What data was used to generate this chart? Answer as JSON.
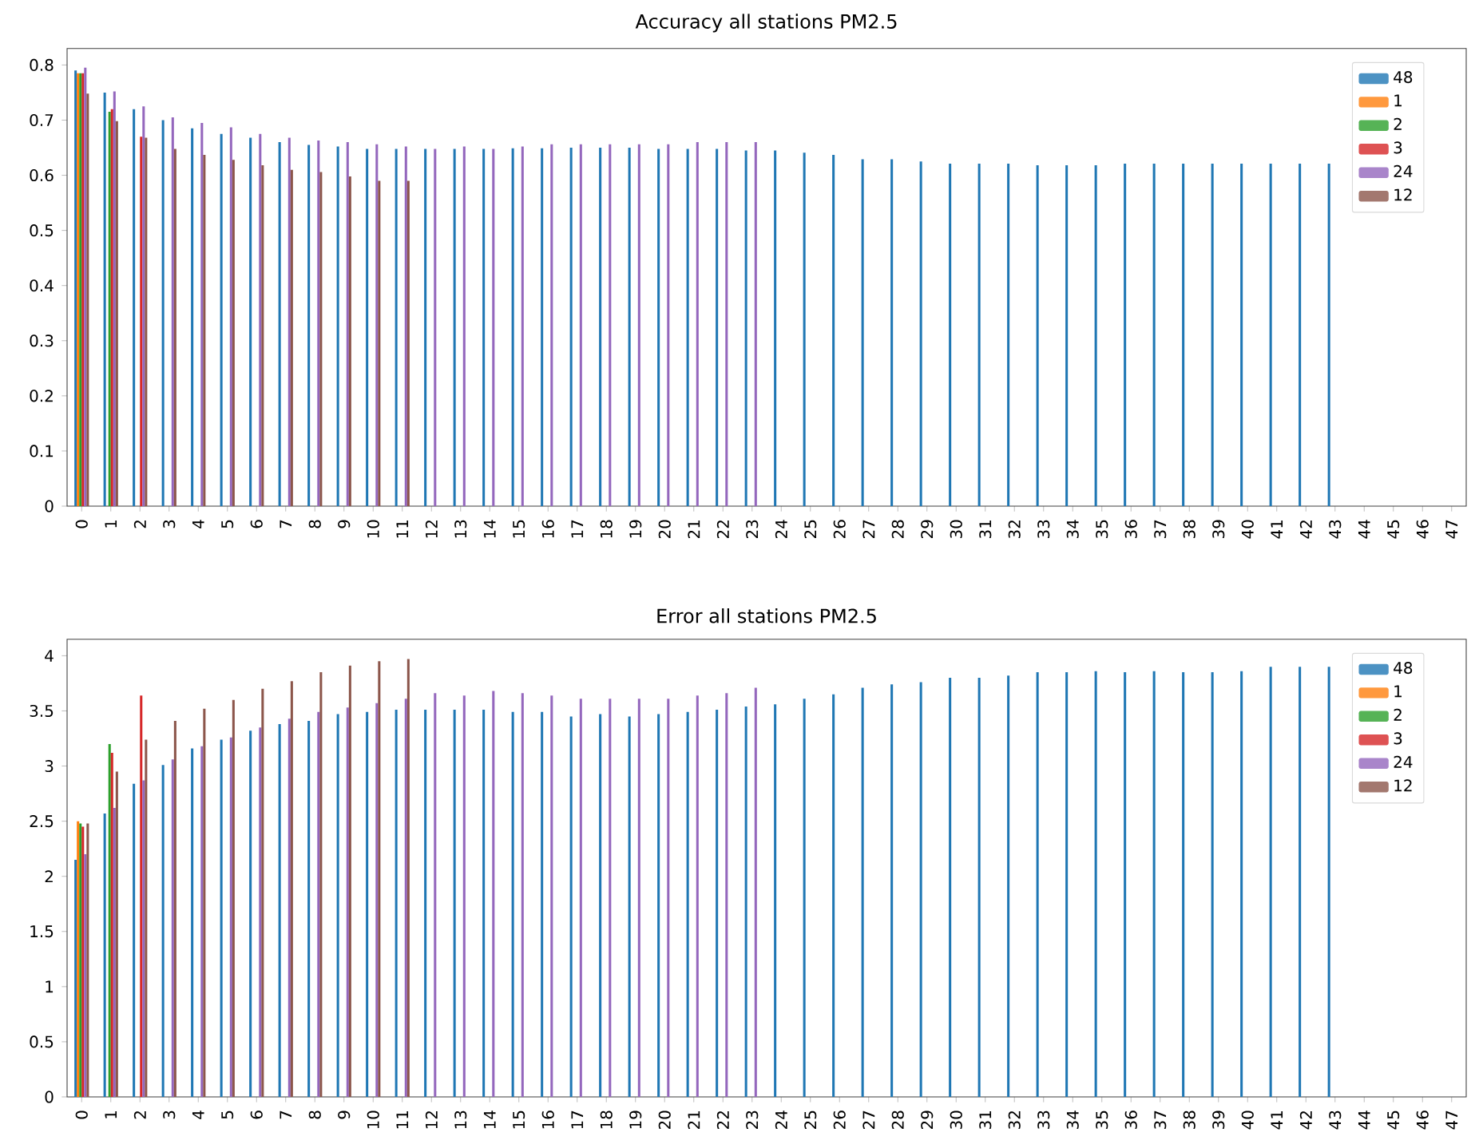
{
  "chart_data": [
    {
      "type": "bar",
      "title": "Accuracy all stations PM2.5",
      "categories": [
        "0",
        "1",
        "2",
        "3",
        "4",
        "5",
        "6",
        "7",
        "8",
        "9",
        "10",
        "11",
        "12",
        "13",
        "14",
        "15",
        "16",
        "17",
        "18",
        "19",
        "20",
        "21",
        "22",
        "23",
        "24",
        "25",
        "26",
        "27",
        "28",
        "29",
        "30",
        "31",
        "32",
        "33",
        "34",
        "35",
        "36",
        "37",
        "38",
        "39",
        "40",
        "41",
        "42",
        "43",
        "44",
        "45",
        "46",
        "47"
      ],
      "ylim": [
        0,
        0.83
      ],
      "yticks": [
        0,
        0.1,
        0.2,
        0.3,
        0.4,
        0.5,
        0.6,
        0.7,
        0.8
      ],
      "legend": "top right",
      "series": [
        {
          "name": "48",
          "color": "#1f77b4",
          "values": [
            0.79,
            0.75,
            0.72,
            0.7,
            0.685,
            0.675,
            0.668,
            0.66,
            0.655,
            0.652,
            0.648,
            0.648,
            0.648,
            0.648,
            0.648,
            0.649,
            0.649,
            0.65,
            0.65,
            0.65,
            0.648,
            0.648,
            0.648,
            0.645,
            0.645,
            0.641,
            0.637,
            0.629,
            0.629,
            0.625,
            0.621,
            0.621,
            0.621,
            0.618,
            0.618,
            0.618,
            0.621,
            0.621,
            0.621,
            0.621,
            0.621,
            0.621,
            0.621,
            0.621,
            null,
            null,
            null,
            null
          ]
        },
        {
          "name": "1",
          "color": "#ff7f0e",
          "values": [
            0.785,
            null,
            null,
            null,
            null,
            null,
            null,
            null,
            null,
            null,
            null,
            null,
            null,
            null,
            null,
            null,
            null,
            null,
            null,
            null,
            null,
            null,
            null,
            null,
            null,
            null,
            null,
            null,
            null,
            null,
            null,
            null,
            null,
            null,
            null,
            null,
            null,
            null,
            null,
            null,
            null,
            null,
            null,
            null,
            null,
            null,
            null,
            null
          ]
        },
        {
          "name": "2",
          "color": "#2ca02c",
          "values": [
            0.785,
            0.715,
            null,
            null,
            null,
            null,
            null,
            null,
            null,
            null,
            null,
            null,
            null,
            null,
            null,
            null,
            null,
            null,
            null,
            null,
            null,
            null,
            null,
            null,
            null,
            null,
            null,
            null,
            null,
            null,
            null,
            null,
            null,
            null,
            null,
            null,
            null,
            null,
            null,
            null,
            null,
            null,
            null,
            null,
            null,
            null,
            null,
            null
          ]
        },
        {
          "name": "3",
          "color": "#d62728",
          "values": [
            0.785,
            0.72,
            0.67,
            null,
            null,
            null,
            null,
            null,
            null,
            null,
            null,
            null,
            null,
            null,
            null,
            null,
            null,
            null,
            null,
            null,
            null,
            null,
            null,
            null,
            null,
            null,
            null,
            null,
            null,
            null,
            null,
            null,
            null,
            null,
            null,
            null,
            null,
            null,
            null,
            null,
            null,
            null,
            null,
            null,
            null,
            null,
            null,
            null
          ]
        },
        {
          "name": "24",
          "color": "#9467bd",
          "values": [
            0.795,
            0.752,
            0.725,
            0.705,
            0.695,
            0.687,
            0.675,
            0.668,
            0.663,
            0.66,
            0.656,
            0.652,
            0.648,
            0.652,
            0.648,
            0.652,
            0.656,
            0.656,
            0.656,
            0.656,
            0.656,
            0.66,
            0.66,
            0.66,
            null,
            null,
            null,
            null,
            null,
            null,
            null,
            null,
            null,
            null,
            null,
            null,
            null,
            null,
            null,
            null,
            null,
            null,
            null,
            null,
            null,
            null,
            null,
            null
          ]
        },
        {
          "name": "12",
          "color": "#8c564b",
          "values": [
            0.748,
            0.698,
            0.668,
            0.648,
            0.637,
            0.628,
            0.618,
            0.61,
            0.606,
            0.598,
            0.59,
            0.59,
            null,
            null,
            null,
            null,
            null,
            null,
            null,
            null,
            null,
            null,
            null,
            null,
            null,
            null,
            null,
            null,
            null,
            null,
            null,
            null,
            null,
            null,
            null,
            null,
            null,
            null,
            null,
            null,
            null,
            null,
            null,
            null,
            null,
            null,
            null,
            null
          ]
        }
      ]
    },
    {
      "type": "bar",
      "title": "Error all stations PM2.5",
      "categories": [
        "0",
        "1",
        "2",
        "3",
        "4",
        "5",
        "6",
        "7",
        "8",
        "9",
        "10",
        "11",
        "12",
        "13",
        "14",
        "15",
        "16",
        "17",
        "18",
        "19",
        "20",
        "21",
        "22",
        "23",
        "24",
        "25",
        "26",
        "27",
        "28",
        "29",
        "30",
        "31",
        "32",
        "33",
        "34",
        "35",
        "36",
        "37",
        "38",
        "39",
        "40",
        "41",
        "42",
        "43",
        "44",
        "45",
        "46",
        "47"
      ],
      "ylim": [
        0,
        4.15
      ],
      "yticks": [
        0,
        0.5,
        1,
        1.5,
        2,
        2.5,
        3,
        3.5,
        4
      ],
      "legend": "top right",
      "series": [
        {
          "name": "48",
          "color": "#1f77b4",
          "values": [
            2.15,
            2.57,
            2.84,
            3.01,
            3.16,
            3.24,
            3.32,
            3.38,
            3.41,
            3.47,
            3.49,
            3.51,
            3.51,
            3.51,
            3.51,
            3.49,
            3.49,
            3.45,
            3.47,
            3.45,
            3.47,
            3.49,
            3.51,
            3.54,
            3.56,
            3.61,
            3.65,
            3.71,
            3.74,
            3.76,
            3.8,
            3.8,
            3.82,
            3.85,
            3.85,
            3.86,
            3.85,
            3.86,
            3.85,
            3.85,
            3.86,
            3.9,
            3.9,
            3.9,
            null,
            null,
            null,
            null
          ]
        },
        {
          "name": "1",
          "color": "#ff7f0e",
          "values": [
            2.5,
            null,
            null,
            null,
            null,
            null,
            null,
            null,
            null,
            null,
            null,
            null,
            null,
            null,
            null,
            null,
            null,
            null,
            null,
            null,
            null,
            null,
            null,
            null,
            null,
            null,
            null,
            null,
            null,
            null,
            null,
            null,
            null,
            null,
            null,
            null,
            null,
            null,
            null,
            null,
            null,
            null,
            null,
            null,
            null,
            null,
            null,
            null
          ]
        },
        {
          "name": "2",
          "color": "#2ca02c",
          "values": [
            2.48,
            3.2,
            null,
            null,
            null,
            null,
            null,
            null,
            null,
            null,
            null,
            null,
            null,
            null,
            null,
            null,
            null,
            null,
            null,
            null,
            null,
            null,
            null,
            null,
            null,
            null,
            null,
            null,
            null,
            null,
            null,
            null,
            null,
            null,
            null,
            null,
            null,
            null,
            null,
            null,
            null,
            null,
            null,
            null,
            null,
            null,
            null,
            null
          ]
        },
        {
          "name": "3",
          "color": "#d62728",
          "values": [
            2.45,
            3.12,
            3.64,
            null,
            null,
            null,
            null,
            null,
            null,
            null,
            null,
            null,
            null,
            null,
            null,
            null,
            null,
            null,
            null,
            null,
            null,
            null,
            null,
            null,
            null,
            null,
            null,
            null,
            null,
            null,
            null,
            null,
            null,
            null,
            null,
            null,
            null,
            null,
            null,
            null,
            null,
            null,
            null,
            null,
            null,
            null,
            null,
            null
          ]
        },
        {
          "name": "24",
          "color": "#9467bd",
          "values": [
            2.2,
            2.62,
            2.87,
            3.06,
            3.18,
            3.26,
            3.35,
            3.43,
            3.49,
            3.53,
            3.57,
            3.61,
            3.66,
            3.64,
            3.68,
            3.66,
            3.64,
            3.61,
            3.61,
            3.61,
            3.61,
            3.64,
            3.66,
            3.71,
            null,
            null,
            null,
            null,
            null,
            null,
            null,
            null,
            null,
            null,
            null,
            null,
            null,
            null,
            null,
            null,
            null,
            null,
            null,
            null,
            null,
            null,
            null,
            null
          ]
        },
        {
          "name": "12",
          "color": "#8c564b",
          "values": [
            2.48,
            2.95,
            3.24,
            3.41,
            3.52,
            3.6,
            3.7,
            3.77,
            3.85,
            3.91,
            3.95,
            3.97,
            null,
            null,
            null,
            null,
            null,
            null,
            null,
            null,
            null,
            null,
            null,
            null,
            null,
            null,
            null,
            null,
            null,
            null,
            null,
            null,
            null,
            null,
            null,
            null,
            null,
            null,
            null,
            null,
            null,
            null,
            null,
            null,
            null,
            null,
            null,
            null
          ]
        }
      ]
    }
  ]
}
